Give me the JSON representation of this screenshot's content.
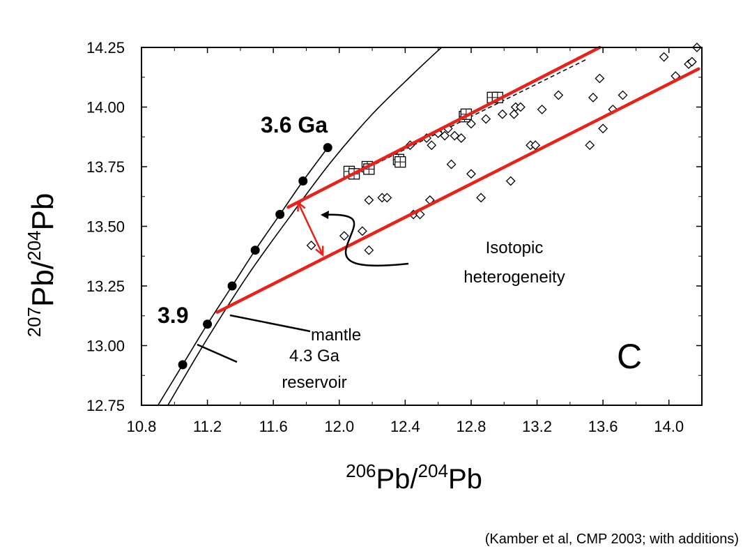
{
  "chart_data": {
    "type": "scatter",
    "title": "",
    "panel_label": "C",
    "xlabel": {
      "sup1": "206",
      "main1": "Pb/",
      "sup2": "204",
      "main2": "Pb"
    },
    "ylabel": {
      "sup1": "207",
      "main1": "Pb/",
      "sup2": "204",
      "main2": "Pb"
    },
    "xlim": [
      10.8,
      14.2
    ],
    "ylim": [
      12.75,
      14.25
    ],
    "xticks": [
      "10.8",
      "11.2",
      "11.6",
      "12.0",
      "12.4",
      "12.8",
      "13.2",
      "13.6",
      "14.0"
    ],
    "yticks": [
      "12.75",
      "13.00",
      "13.25",
      "13.50",
      "13.75",
      "14.00",
      "14.25"
    ],
    "growth_curve_points": [
      {
        "x": 11.05,
        "y": 12.92
      },
      {
        "x": 11.2,
        "y": 13.09
      },
      {
        "x": 11.35,
        "y": 13.25
      },
      {
        "x": 11.49,
        "y": 13.4
      },
      {
        "x": 11.64,
        "y": 13.55
      },
      {
        "x": 11.78,
        "y": 13.69
      },
      {
        "x": 11.93,
        "y": 13.83
      }
    ],
    "curve_1": [
      {
        "x": 10.9,
        "y": 12.75
      },
      {
        "x": 11.05,
        "y": 12.92
      },
      {
        "x": 11.2,
        "y": 13.09
      },
      {
        "x": 11.35,
        "y": 13.25
      },
      {
        "x": 11.49,
        "y": 13.4
      },
      {
        "x": 11.64,
        "y": 13.55
      },
      {
        "x": 11.78,
        "y": 13.69
      },
      {
        "x": 11.93,
        "y": 13.83
      }
    ],
    "curve_2": [
      {
        "x": 10.96,
        "y": 12.75
      },
      {
        "x": 11.2,
        "y": 13.03
      },
      {
        "x": 11.45,
        "y": 13.3
      },
      {
        "x": 11.7,
        "y": 13.54
      },
      {
        "x": 11.95,
        "y": 13.77
      },
      {
        "x": 12.2,
        "y": 13.97
      },
      {
        "x": 12.45,
        "y": 14.14
      },
      {
        "x": 12.62,
        "y": 14.25
      }
    ],
    "squares": [
      {
        "x": 12.06,
        "y": 13.73
      },
      {
        "x": 12.09,
        "y": 13.72
      },
      {
        "x": 12.17,
        "y": 13.75
      },
      {
        "x": 12.18,
        "y": 13.74
      },
      {
        "x": 12.36,
        "y": 13.78
      },
      {
        "x": 12.37,
        "y": 13.77
      },
      {
        "x": 12.76,
        "y": 13.96
      },
      {
        "x": 12.77,
        "y": 13.97
      },
      {
        "x": 12.93,
        "y": 14.04
      },
      {
        "x": 12.96,
        "y": 14.04
      }
    ],
    "diamonds": [
      {
        "x": 11.83,
        "y": 13.42
      },
      {
        "x": 12.03,
        "y": 13.46
      },
      {
        "x": 12.14,
        "y": 13.48
      },
      {
        "x": 12.18,
        "y": 13.4
      },
      {
        "x": 12.18,
        "y": 13.61
      },
      {
        "x": 12.26,
        "y": 13.62
      },
      {
        "x": 12.29,
        "y": 13.62
      },
      {
        "x": 12.45,
        "y": 13.55
      },
      {
        "x": 12.49,
        "y": 13.55
      },
      {
        "x": 12.55,
        "y": 13.61
      },
      {
        "x": 12.43,
        "y": 13.84
      },
      {
        "x": 12.53,
        "y": 13.87
      },
      {
        "x": 12.56,
        "y": 13.84
      },
      {
        "x": 12.6,
        "y": 13.89
      },
      {
        "x": 12.64,
        "y": 13.88
      },
      {
        "x": 12.66,
        "y": 13.91
      },
      {
        "x": 12.7,
        "y": 13.88
      },
      {
        "x": 12.74,
        "y": 13.87
      },
      {
        "x": 12.68,
        "y": 13.76
      },
      {
        "x": 12.8,
        "y": 13.72
      },
      {
        "x": 12.8,
        "y": 13.93
      },
      {
        "x": 12.86,
        "y": 13.62
      },
      {
        "x": 12.89,
        "y": 13.95
      },
      {
        "x": 12.99,
        "y": 13.97
      },
      {
        "x": 13.04,
        "y": 13.69
      },
      {
        "x": 13.06,
        "y": 13.97
      },
      {
        "x": 13.07,
        "y": 14.0
      },
      {
        "x": 13.1,
        "y": 14.0
      },
      {
        "x": 13.16,
        "y": 13.84
      },
      {
        "x": 13.19,
        "y": 13.84
      },
      {
        "x": 13.23,
        "y": 13.99
      },
      {
        "x": 13.33,
        "y": 14.05
      },
      {
        "x": 13.52,
        "y": 13.84
      },
      {
        "x": 13.54,
        "y": 14.04
      },
      {
        "x": 13.58,
        "y": 14.12
      },
      {
        "x": 13.6,
        "y": 13.91
      },
      {
        "x": 13.66,
        "y": 13.99
      },
      {
        "x": 13.72,
        "y": 14.05
      },
      {
        "x": 13.97,
        "y": 14.21
      },
      {
        "x": 14.04,
        "y": 14.13
      },
      {
        "x": 14.12,
        "y": 14.18
      },
      {
        "x": 14.14,
        "y": 14.19
      },
      {
        "x": 14.17,
        "y": 14.25
      }
    ],
    "red_line_upper": [
      {
        "x": 11.69,
        "y": 13.58
      },
      {
        "x": 13.58,
        "y": 14.25
      }
    ],
    "red_line_lower": [
      {
        "x": 11.26,
        "y": 13.14
      },
      {
        "x": 14.18,
        "y": 14.16
      }
    ],
    "dashed_line": [
      {
        "x": 11.69,
        "y": 13.58
      },
      {
        "x": 13.5,
        "y": 14.2
      }
    ],
    "heterogeneity_arrow": [
      {
        "x": 11.75,
        "y": 13.6
      },
      {
        "x": 11.9,
        "y": 13.38
      }
    ],
    "annotations": {
      "age_top": "3.6 Ga",
      "age_bottom": "3.9",
      "isotopic_line1": "Isotopic",
      "isotopic_line2": "heterogeneity",
      "mantle": "mantle",
      "reservoir_line1": "4.3 Ga",
      "reservoir_line2": "reservoir"
    },
    "grid": false,
    "legend": "none"
  },
  "citation": "(Kamber et al, CMP 2003; with additions)",
  "colors": {
    "highlight": "#e8211a",
    "ink": "#000000",
    "background": "#ffffff"
  }
}
